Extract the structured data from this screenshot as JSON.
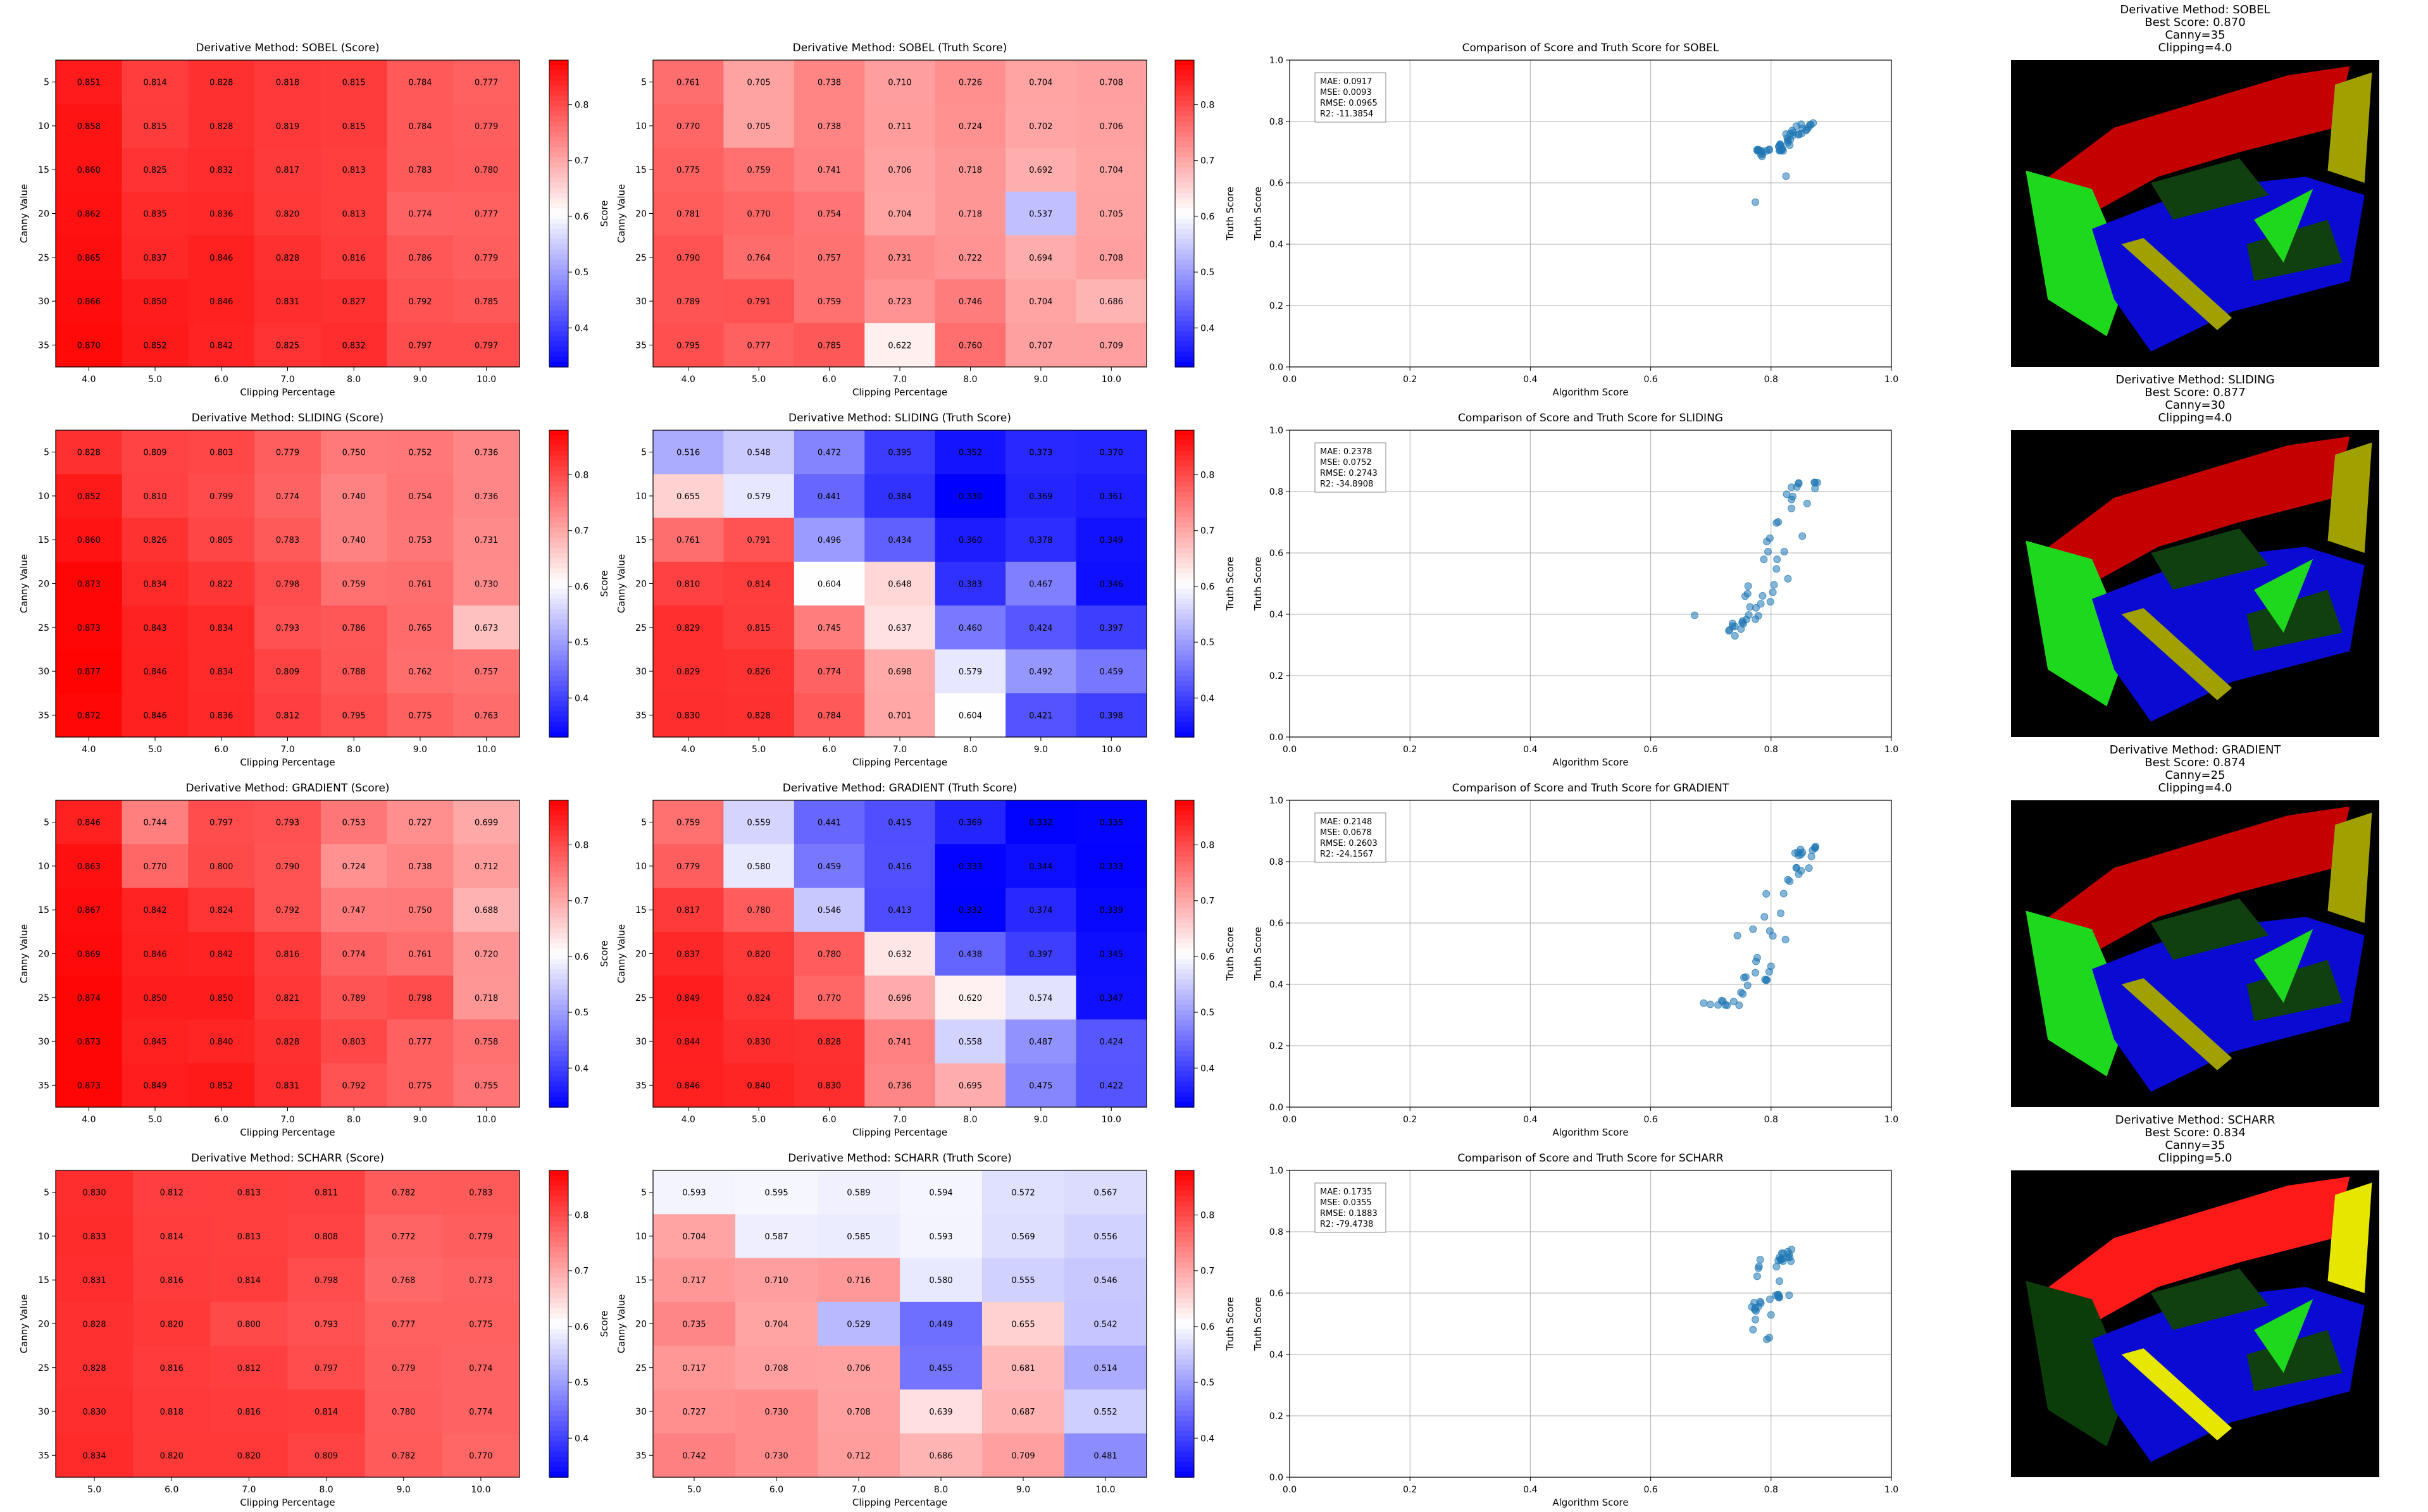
{
  "figure": {
    "colorbar_ticks": [
      "0.4",
      "0.5",
      "0.6",
      "0.7",
      "0.8"
    ],
    "scatter_ticks": [
      "0.0",
      "0.2",
      "0.4",
      "0.6",
      "0.8",
      "1.0"
    ],
    "colors": {
      "low": "#0000ff",
      "mid": "#ffffff",
      "high": "#ff0000",
      "scatter_point": "#1f77b4",
      "grid": "#b0b0b0"
    }
  },
  "chart_data": [
    {
      "method": "SOBEL",
      "heatmap_score": {
        "type": "heatmap",
        "title": "Derivative Method: SOBEL (Score)",
        "xlabel": "Clipping Percentage",
        "ylabel": "Canny Value",
        "colorbar_label": "Score",
        "x": [
          "4.0",
          "5.0",
          "6.0",
          "7.0",
          "8.0",
          "9.0",
          "10.0"
        ],
        "y": [
          "5",
          "10",
          "15",
          "20",
          "25",
          "30",
          "35"
        ],
        "vmin": 0.33,
        "vmax": 0.88,
        "values": [
          [
            0.851,
            0.814,
            0.828,
            0.818,
            0.815,
            0.784,
            0.777
          ],
          [
            0.858,
            0.815,
            0.828,
            0.819,
            0.815,
            0.784,
            0.779
          ],
          [
            0.86,
            0.825,
            0.832,
            0.817,
            0.813,
            0.783,
            0.78
          ],
          [
            0.862,
            0.835,
            0.836,
            0.82,
            0.813,
            0.774,
            0.777
          ],
          [
            0.865,
            0.837,
            0.846,
            0.828,
            0.816,
            0.786,
            0.779
          ],
          [
            0.866,
            0.85,
            0.846,
            0.831,
            0.827,
            0.792,
            0.785
          ],
          [
            0.87,
            0.852,
            0.842,
            0.825,
            0.832,
            0.797,
            0.797
          ]
        ]
      },
      "heatmap_truth": {
        "type": "heatmap",
        "title": "Derivative Method: SOBEL (Truth Score)",
        "xlabel": "Clipping Percentage",
        "ylabel": "Canny Value",
        "colorbar_label": "Truth Score",
        "x": [
          "4.0",
          "5.0",
          "6.0",
          "7.0",
          "8.0",
          "9.0",
          "10.0"
        ],
        "y": [
          "5",
          "10",
          "15",
          "20",
          "25",
          "30",
          "35"
        ],
        "vmin": 0.33,
        "vmax": 0.88,
        "values": [
          [
            0.761,
            0.705,
            0.738,
            0.71,
            0.726,
            0.704,
            0.708
          ],
          [
            0.77,
            0.705,
            0.738,
            0.711,
            0.724,
            0.702,
            0.706
          ],
          [
            0.775,
            0.759,
            0.741,
            0.706,
            0.718,
            0.692,
            0.704
          ],
          [
            0.781,
            0.77,
            0.754,
            0.704,
            0.718,
            0.537,
            0.705
          ],
          [
            0.79,
            0.764,
            0.757,
            0.731,
            0.722,
            0.694,
            0.708
          ],
          [
            0.789,
            0.791,
            0.759,
            0.723,
            0.746,
            0.704,
            0.686
          ],
          [
            0.795,
            0.777,
            0.785,
            0.622,
            0.76,
            0.707,
            0.709
          ]
        ]
      },
      "scatter": {
        "type": "scatter",
        "title": "Comparison of Score and Truth Score for SOBEL",
        "xlabel": "Algorithm Score",
        "ylabel": "Truth Score",
        "xlim": [
          0,
          1
        ],
        "ylim": [
          0,
          1
        ],
        "stats": [
          "MAE: 0.0917",
          "MSE: 0.0093",
          "RMSE: 0.0965",
          "R2: -11.3854"
        ]
      },
      "segmentation": {
        "title_lines": [
          "Derivative Method: SOBEL",
          "Best Score: 0.870",
          "Canny=35",
          "Clipping=4.0"
        ],
        "variant": "a"
      }
    },
    {
      "method": "SLIDING",
      "heatmap_score": {
        "type": "heatmap",
        "title": "Derivative Method: SLIDING (Score)",
        "xlabel": "Clipping Percentage",
        "ylabel": "Canny Value",
        "colorbar_label": "Score",
        "x": [
          "4.0",
          "5.0",
          "6.0",
          "7.0",
          "8.0",
          "9.0",
          "10.0"
        ],
        "y": [
          "5",
          "10",
          "15",
          "20",
          "25",
          "30",
          "35"
        ],
        "vmin": 0.33,
        "vmax": 0.88,
        "values": [
          [
            0.828,
            0.809,
            0.803,
            0.779,
            0.75,
            0.752,
            0.736
          ],
          [
            0.852,
            0.81,
            0.799,
            0.774,
            0.74,
            0.754,
            0.736
          ],
          [
            0.86,
            0.826,
            0.805,
            0.783,
            0.74,
            0.753,
            0.731
          ],
          [
            0.873,
            0.834,
            0.822,
            0.798,
            0.759,
            0.761,
            0.73
          ],
          [
            0.873,
            0.843,
            0.834,
            0.793,
            0.786,
            0.765,
            0.673
          ],
          [
            0.877,
            0.846,
            0.834,
            0.809,
            0.788,
            0.762,
            0.757
          ],
          [
            0.872,
            0.846,
            0.836,
            0.812,
            0.795,
            0.775,
            0.763
          ]
        ]
      },
      "heatmap_truth": {
        "type": "heatmap",
        "title": "Derivative Method: SLIDING (Truth Score)",
        "xlabel": "Clipping Percentage",
        "ylabel": "Canny Value",
        "colorbar_label": "Truth Score",
        "x": [
          "4.0",
          "5.0",
          "6.0",
          "7.0",
          "8.0",
          "9.0",
          "10.0"
        ],
        "y": [
          "5",
          "10",
          "15",
          "20",
          "25",
          "30",
          "35"
        ],
        "vmin": 0.33,
        "vmax": 0.88,
        "values": [
          [
            0.516,
            0.548,
            0.472,
            0.395,
            0.352,
            0.373,
            0.37
          ],
          [
            0.655,
            0.579,
            0.441,
            0.384,
            0.33,
            0.369,
            0.361
          ],
          [
            0.761,
            0.791,
            0.496,
            0.434,
            0.36,
            0.378,
            0.349
          ],
          [
            0.81,
            0.814,
            0.604,
            0.648,
            0.383,
            0.467,
            0.346
          ],
          [
            0.829,
            0.815,
            0.745,
            0.637,
            0.46,
            0.424,
            0.397
          ],
          [
            0.829,
            0.826,
            0.774,
            0.698,
            0.579,
            0.492,
            0.459
          ],
          [
            0.83,
            0.828,
            0.784,
            0.701,
            0.604,
            0.421,
            0.398
          ]
        ]
      },
      "scatter": {
        "type": "scatter",
        "title": "Comparison of Score and Truth Score for SLIDING",
        "xlabel": "Algorithm Score",
        "ylabel": "Truth Score",
        "xlim": [
          0,
          1
        ],
        "ylim": [
          0,
          1
        ],
        "stats": [
          "MAE: 0.2378",
          "MSE: 0.0752",
          "RMSE: 0.2743",
          "R2: -34.8908"
        ]
      },
      "segmentation": {
        "title_lines": [
          "Derivative Method: SLIDING",
          "Best Score: 0.877",
          "Canny=30",
          "Clipping=4.0"
        ],
        "variant": "b"
      }
    },
    {
      "method": "GRADIENT",
      "heatmap_score": {
        "type": "heatmap",
        "title": "Derivative Method: GRADIENT (Score)",
        "xlabel": "Clipping Percentage",
        "ylabel": "Canny Value",
        "colorbar_label": "Score",
        "x": [
          "4.0",
          "5.0",
          "6.0",
          "7.0",
          "8.0",
          "9.0",
          "10.0"
        ],
        "y": [
          "5",
          "10",
          "15",
          "20",
          "25",
          "30",
          "35"
        ],
        "vmin": 0.33,
        "vmax": 0.88,
        "values": [
          [
            0.846,
            0.744,
            0.797,
            0.793,
            0.753,
            0.727,
            0.699
          ],
          [
            0.863,
            0.77,
            0.8,
            0.79,
            0.724,
            0.738,
            0.712
          ],
          [
            0.867,
            0.842,
            0.824,
            0.792,
            0.747,
            0.75,
            0.688
          ],
          [
            0.869,
            0.846,
            0.842,
            0.816,
            0.774,
            0.761,
            0.72
          ],
          [
            0.874,
            0.85,
            0.85,
            0.821,
            0.789,
            0.798,
            0.718
          ],
          [
            0.873,
            0.845,
            0.84,
            0.828,
            0.803,
            0.777,
            0.758
          ],
          [
            0.873,
            0.849,
            0.852,
            0.831,
            0.792,
            0.775,
            0.755
          ]
        ]
      },
      "heatmap_truth": {
        "type": "heatmap",
        "title": "Derivative Method: GRADIENT (Truth Score)",
        "xlabel": "Clipping Percentage",
        "ylabel": "Canny Value",
        "colorbar_label": "Truth Score",
        "x": [
          "4.0",
          "5.0",
          "6.0",
          "7.0",
          "8.0",
          "9.0",
          "10.0"
        ],
        "y": [
          "5",
          "10",
          "15",
          "20",
          "25",
          "30",
          "35"
        ],
        "vmin": 0.33,
        "vmax": 0.88,
        "values": [
          [
            0.759,
            0.559,
            0.441,
            0.415,
            0.369,
            0.332,
            0.335
          ],
          [
            0.779,
            0.58,
            0.459,
            0.416,
            0.333,
            0.344,
            0.333
          ],
          [
            0.817,
            0.78,
            0.546,
            0.413,
            0.332,
            0.374,
            0.339
          ],
          [
            0.837,
            0.82,
            0.78,
            0.632,
            0.438,
            0.397,
            0.345
          ],
          [
            0.849,
            0.824,
            0.77,
            0.696,
            0.62,
            0.574,
            0.347
          ],
          [
            0.844,
            0.83,
            0.828,
            0.741,
            0.558,
            0.487,
            0.424
          ],
          [
            0.846,
            0.84,
            0.83,
            0.736,
            0.695,
            0.475,
            0.422
          ]
        ]
      },
      "scatter": {
        "type": "scatter",
        "title": "Comparison of Score and Truth Score for GRADIENT",
        "xlabel": "Algorithm Score",
        "ylabel": "Truth Score",
        "xlim": [
          0,
          1
        ],
        "ylim": [
          0,
          1
        ],
        "stats": [
          "MAE: 0.2148",
          "MSE: 0.0678",
          "RMSE: 0.2603",
          "R2: -24.1567"
        ]
      },
      "segmentation": {
        "title_lines": [
          "Derivative Method: GRADIENT",
          "Best Score: 0.874",
          "Canny=25",
          "Clipping=4.0"
        ],
        "variant": "b"
      }
    },
    {
      "method": "SCHARR",
      "heatmap_score": {
        "type": "heatmap",
        "title": "Derivative Method: SCHARR (Score)",
        "xlabel": "Clipping Percentage",
        "ylabel": "Canny Value",
        "colorbar_label": "Score",
        "x": [
          "5.0",
          "6.0",
          "7.0",
          "8.0",
          "9.0",
          "10.0"
        ],
        "y": [
          "5",
          "10",
          "15",
          "20",
          "25",
          "30",
          "35"
        ],
        "vmin": 0.33,
        "vmax": 0.88,
        "values": [
          [
            0.83,
            0.812,
            0.813,
            0.811,
            0.782,
            0.783
          ],
          [
            0.833,
            0.814,
            0.813,
            0.808,
            0.772,
            0.779
          ],
          [
            0.831,
            0.816,
            0.814,
            0.798,
            0.768,
            0.773
          ],
          [
            0.828,
            0.82,
            0.8,
            0.793,
            0.777,
            0.775
          ],
          [
            0.828,
            0.816,
            0.812,
            0.797,
            0.779,
            0.774
          ],
          [
            0.83,
            0.818,
            0.816,
            0.814,
            0.78,
            0.774
          ],
          [
            0.834,
            0.82,
            0.82,
            0.809,
            0.782,
            0.77
          ]
        ]
      },
      "heatmap_truth": {
        "type": "heatmap",
        "title": "Derivative Method: SCHARR (Truth Score)",
        "xlabel": "Clipping Percentage",
        "ylabel": "Canny Value",
        "colorbar_label": "Truth Score",
        "x": [
          "5.0",
          "6.0",
          "7.0",
          "8.0",
          "9.0",
          "10.0"
        ],
        "y": [
          "5",
          "10",
          "15",
          "20",
          "25",
          "30",
          "35"
        ],
        "vmin": 0.33,
        "vmax": 0.88,
        "values": [
          [
            0.593,
            0.595,
            0.589,
            0.594,
            0.572,
            0.567
          ],
          [
            0.704,
            0.587,
            0.585,
            0.593,
            0.569,
            0.556
          ],
          [
            0.717,
            0.71,
            0.716,
            0.58,
            0.555,
            0.546
          ],
          [
            0.735,
            0.704,
            0.529,
            0.449,
            0.655,
            0.542
          ],
          [
            0.717,
            0.708,
            0.706,
            0.455,
            0.681,
            0.514
          ],
          [
            0.727,
            0.73,
            0.708,
            0.639,
            0.687,
            0.552
          ],
          [
            0.742,
            0.73,
            0.712,
            0.686,
            0.709,
            0.481
          ]
        ]
      },
      "scatter": {
        "type": "scatter",
        "title": "Comparison of Score and Truth Score for SCHARR",
        "xlabel": "Algorithm Score",
        "ylabel": "Truth Score",
        "xlim": [
          0,
          1
        ],
        "ylim": [
          0,
          1
        ],
        "stats": [
          "MAE: 0.1735",
          "MSE: 0.0355",
          "RMSE: 0.1883",
          "R2: -79.4738"
        ]
      },
      "segmentation": {
        "title_lines": [
          "Derivative Method: SCHARR",
          "Best Score: 0.834",
          "Canny=35",
          "Clipping=5.0"
        ],
        "variant": "c"
      }
    }
  ]
}
